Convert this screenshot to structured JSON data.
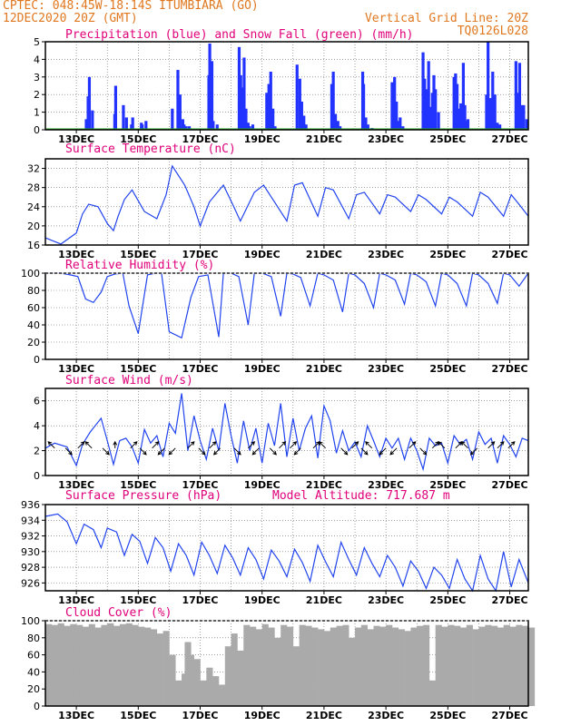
{
  "header": {
    "line1": "CPTEC:   048:45W-18:14S   ITUMBIARA (GO)",
    "line2": "12DEC2020 20Z (GMT)",
    "grid_line": "Vertical Grid Line: 20Z",
    "code": "TQ0126L028"
  },
  "colors": {
    "header": "#e07820",
    "title": "#e0007a",
    "precip": "#2233ff",
    "snow": "#22aa22",
    "line": "#2244ee",
    "cloud": "#aaaaaa",
    "arrow": "#000000"
  },
  "x_ticks": [
    "13DEC",
    "15DEC",
    "17DEC",
    "19DEC",
    "21DEC",
    "23DEC",
    "25DEC",
    "27DEC"
  ],
  "chart_data": [
    {
      "id": "precip",
      "type": "bar",
      "title": "Precipitation (blue) and Snow Fall (green) (mm/h)",
      "ylim": [
        0,
        5
      ],
      "yticks": [
        0,
        1,
        2,
        3,
        4,
        5
      ],
      "series": [
        {
          "name": "Precipitation",
          "x": [
            0.32,
            0.38,
            0.42,
            0.52,
            1.24,
            1.27,
            1.52,
            1.62,
            1.78,
            1.82,
            2.1,
            2.13,
            2.25,
            3.1,
            3.28,
            3.35,
            3.44,
            3.48,
            3.55,
            3.65,
            4.28,
            4.31,
            4.38,
            4.42,
            4.55,
            5.26,
            5.31,
            5.35,
            5.42,
            5.48,
            5.55,
            5.6,
            5.7,
            6.15,
            6.22,
            6.28,
            6.35,
            6.42,
            7.13,
            7.22,
            7.28,
            7.35,
            7.42,
            8.25,
            8.3,
            8.37,
            8.45,
            8.52,
            9.25,
            9.28,
            9.35,
            9.42,
            9.55,
            10.2,
            10.28,
            10.34,
            10.4,
            10.46,
            10.55,
            11.2,
            11.25,
            11.3,
            11.38,
            11.45,
            11.5,
            11.55,
            11.6,
            11.7,
            12.2,
            12.25,
            12.3,
            12.35,
            12.42,
            12.5,
            12.55,
            12.6,
            12.65,
            13.25,
            13.3,
            13.38,
            13.45,
            13.52,
            13.6,
            13.68,
            14.2,
            14.26,
            14.32,
            14.38,
            14.45,
            14.55
          ],
          "values": [
            0.6,
            1.9,
            3.0,
            1.1,
            0.9,
            2.5,
            1.4,
            0.7,
            0.3,
            0.7,
            0.4,
            0.3,
            0.5,
            1.2,
            3.4,
            2.0,
            0.6,
            0.3,
            0.2,
            0.2,
            3.1,
            4.9,
            3.9,
            0.5,
            0.3,
            4.7,
            3.1,
            2.4,
            4.1,
            1.2,
            0.4,
            0.2,
            0.3,
            2.1,
            2.6,
            3.3,
            1.2,
            0.2,
            3.7,
            2.9,
            1.6,
            0.8,
            0.3,
            2.6,
            3.3,
            0.9,
            0.5,
            0.2,
            3.3,
            2.6,
            0.7,
            0.3,
            0.1,
            2.7,
            3.0,
            1.6,
            0.5,
            0.7,
            0.2,
            4.4,
            2.9,
            2.3,
            3.9,
            1.3,
            2.1,
            3.1,
            2.3,
            1.0,
            3.0,
            3.2,
            2.6,
            1.2,
            1.5,
            3.8,
            1.4,
            0.5,
            0.6,
            2.0,
            5.0,
            1.8,
            3.3,
            2.0,
            0.4,
            0.3,
            3.9,
            2.1,
            3.8,
            1.4,
            1.4,
            0.6
          ]
        },
        {
          "name": "Snow Fall",
          "x": [
            0,
            14.6
          ],
          "values": [
            0,
            0
          ]
        }
      ]
    },
    {
      "id": "temp",
      "type": "line",
      "title": "Surface Temperature (nC)",
      "ylim": [
        16,
        34
      ],
      "yticks": [
        16,
        20,
        24,
        28,
        32
      ],
      "series": [
        {
          "name": "Temperature",
          "x": [
            -1,
            -0.5,
            0,
            0.2,
            0.4,
            0.7,
            1.0,
            1.2,
            1.35,
            1.55,
            1.8,
            2.2,
            2.6,
            2.9,
            3.1,
            3.5,
            3.8,
            4.0,
            4.3,
            4.75,
            5.05,
            5.3,
            5.75,
            6.05,
            6.3,
            6.8,
            7.05,
            7.3,
            7.8,
            8.05,
            8.3,
            8.8,
            9.05,
            9.3,
            9.8,
            10.05,
            10.3,
            10.8,
            11.05,
            11.3,
            11.8,
            12.05,
            12.3,
            12.8,
            13.05,
            13.3,
            13.8,
            14.05,
            14.3,
            14.6
          ],
          "values": [
            17.5,
            16.2,
            18.5,
            22.5,
            24.5,
            24.0,
            20.5,
            19.0,
            22.0,
            25.5,
            27.5,
            23.0,
            21.5,
            26.5,
            32.5,
            28.5,
            24.0,
            20.0,
            25.0,
            28.5,
            24.5,
            21.0,
            27.0,
            28.5,
            26.0,
            21.0,
            28.5,
            29.0,
            22.0,
            28.0,
            27.5,
            21.5,
            26.5,
            27.0,
            22.5,
            26.5,
            26.0,
            23.0,
            26.5,
            25.5,
            22.5,
            26.0,
            25.0,
            22.0,
            27.0,
            26.0,
            22.0,
            26.5,
            24.5,
            22.0
          ]
        }
      ]
    },
    {
      "id": "rh",
      "type": "line",
      "title": "Relative Humidity (%)",
      "ylim": [
        0,
        100
      ],
      "yticks": [
        0,
        20,
        40,
        60,
        80,
        100
      ],
      "series": [
        {
          "name": "Relative Humidity",
          "x": [
            -1,
            -0.5,
            -0.2,
            0.05,
            0.3,
            0.55,
            0.8,
            1.0,
            1.25,
            1.5,
            1.7,
            2.0,
            2.3,
            2.55,
            2.75,
            3.0,
            3.4,
            3.7,
            3.95,
            4.25,
            4.6,
            4.75,
            5.0,
            5.25,
            5.55,
            5.75,
            6.0,
            6.3,
            6.6,
            6.8,
            7.0,
            7.25,
            7.55,
            7.8,
            8.0,
            8.3,
            8.6,
            8.8,
            9.0,
            9.3,
            9.6,
            9.8,
            10.0,
            10.3,
            10.6,
            10.8,
            11.0,
            11.3,
            11.6,
            11.8,
            12.0,
            12.3,
            12.6,
            12.8,
            13.0,
            13.3,
            13.6,
            13.8,
            14.0,
            14.3,
            14.6
          ],
          "values": [
            100,
            100,
            98,
            96,
            70,
            66,
            78,
            96,
            99,
            100,
            62,
            30,
            98,
            100,
            100,
            32,
            25,
            72,
            96,
            98,
            26,
            100,
            100,
            96,
            40,
            100,
            100,
            96,
            50,
            100,
            99,
            95,
            62,
            100,
            98,
            92,
            55,
            100,
            98,
            88,
            60,
            100,
            98,
            92,
            64,
            100,
            98,
            90,
            62,
            100,
            98,
            88,
            62,
            100,
            98,
            88,
            65,
            100,
            98,
            85,
            100
          ]
        }
      ]
    },
    {
      "id": "wind",
      "type": "line",
      "title": "Surface Wind (m/s)",
      "ylim": [
        0,
        7
      ],
      "yticks": [
        0,
        2,
        4,
        6
      ],
      "series": [
        {
          "name": "Wind Speed",
          "x": [
            -1,
            -0.7,
            -0.3,
            0,
            0.2,
            0.45,
            0.8,
            1.0,
            1.2,
            1.4,
            1.6,
            1.8,
            2.0,
            2.2,
            2.4,
            2.6,
            2.8,
            3.0,
            3.2,
            3.4,
            3.6,
            3.8,
            4.0,
            4.2,
            4.4,
            4.6,
            4.8,
            5.0,
            5.2,
            5.4,
            5.6,
            5.8,
            6.0,
            6.2,
            6.4,
            6.6,
            6.8,
            7.0,
            7.2,
            7.4,
            7.6,
            7.8,
            8.0,
            8.2,
            8.4,
            8.6,
            8.8,
            9.0,
            9.2,
            9.4,
            9.6,
            9.8,
            10.0,
            10.2,
            10.4,
            10.6,
            10.8,
            11.0,
            11.2,
            11.4,
            11.6,
            11.8,
            12.0,
            12.2,
            12.4,
            12.6,
            12.8,
            13.0,
            13.2,
            13.4,
            13.6,
            13.8,
            14.0,
            14.2,
            14.4,
            14.6
          ],
          "values": [
            2.2,
            2.6,
            2.3,
            0.8,
            2.5,
            3.5,
            4.6,
            2.8,
            0.9,
            2.8,
            3.0,
            2.3,
            1.0,
            3.7,
            2.6,
            3.2,
            1.5,
            4.2,
            3.4,
            6.6,
            2.0,
            4.8,
            2.8,
            1.3,
            3.8,
            2.0,
            5.8,
            3.2,
            1.0,
            4.4,
            2.0,
            3.8,
            1.0,
            4.2,
            2.4,
            5.8,
            1.5,
            4.6,
            2.0,
            3.8,
            4.8,
            1.4,
            5.6,
            4.4,
            1.8,
            3.6,
            2.0,
            2.7,
            1.5,
            4.0,
            2.8,
            1.5,
            3.0,
            2.2,
            3.0,
            1.3,
            3.0,
            2.0,
            0.5,
            3.0,
            2.4,
            2.6,
            1.0,
            3.2,
            2.5,
            2.9,
            1.3,
            3.5,
            2.5,
            3.0,
            1.0,
            3.2,
            2.5,
            1.5,
            3.0,
            2.8
          ]
        }
      ],
      "arrows": {
        "x": [
          -0.7,
          -0.35,
          0.05,
          0.5,
          0.85,
          1.25,
          1.75,
          2.05,
          2.45,
          2.85,
          3.2,
          3.6,
          3.95,
          4.3,
          4.65,
          5.1,
          5.55,
          5.9,
          6.25,
          6.55,
          6.9,
          7.25,
          7.65,
          8.05,
          8.55,
          8.9,
          9.2,
          9.55,
          10.0,
          10.35,
          10.75,
          11.1,
          11.5,
          11.9,
          12.25,
          12.65,
          12.95,
          13.3,
          13.6,
          13.95
        ],
        "u": [
          -1,
          1,
          1,
          -1,
          1,
          0,
          1,
          1,
          1,
          -1,
          -1,
          1,
          1,
          1,
          -1,
          1,
          1,
          -1,
          1,
          1,
          1,
          -1,
          1,
          -1,
          1,
          1,
          1,
          -1,
          -1,
          -1,
          1,
          1,
          1,
          -1,
          1,
          -1,
          -1,
          1,
          1,
          1
        ],
        "v": [
          1,
          -1,
          1,
          1,
          -1,
          1,
          1,
          -1,
          1,
          -1,
          -1,
          1,
          -1,
          1,
          -1,
          -1,
          1,
          -1,
          -1,
          1,
          1,
          -1,
          1,
          1,
          -1,
          1,
          -1,
          1,
          -1,
          -1,
          1,
          -1,
          1,
          1,
          1,
          1,
          -1,
          1,
          1,
          1
        ]
      }
    },
    {
      "id": "pressure",
      "type": "line",
      "title": "Surface Pressure (hPa)",
      "annotation": "Model Altitude: 717.687  m",
      "ylim": [
        925,
        936
      ],
      "yticks": [
        926,
        928,
        930,
        932,
        934,
        936
      ],
      "series": [
        {
          "name": "Pressure",
          "x": [
            -1,
            -0.6,
            -0.3,
            0,
            0.25,
            0.55,
            0.8,
            1.0,
            1.3,
            1.55,
            1.8,
            2.05,
            2.3,
            2.55,
            2.8,
            3.05,
            3.3,
            3.55,
            3.8,
            4.05,
            4.3,
            4.55,
            4.8,
            5.05,
            5.3,
            5.55,
            5.8,
            6.05,
            6.3,
            6.55,
            6.8,
            7.05,
            7.3,
            7.55,
            7.8,
            8.05,
            8.3,
            8.55,
            8.8,
            9.05,
            9.3,
            9.55,
            9.8,
            10.05,
            10.3,
            10.55,
            10.8,
            11.05,
            11.3,
            11.55,
            11.8,
            12.05,
            12.3,
            12.55,
            12.8,
            13.05,
            13.3,
            13.55,
            13.8,
            14.05,
            14.3,
            14.6
          ],
          "values": [
            934.5,
            934.8,
            933.8,
            931.0,
            933.5,
            932.8,
            930.5,
            933.0,
            932.5,
            929.5,
            932.2,
            931.3,
            928.5,
            931.8,
            930.5,
            927.5,
            931.0,
            929.5,
            927.0,
            931.2,
            929.5,
            927.2,
            930.8,
            929.2,
            927.0,
            930.5,
            929.0,
            926.5,
            930.2,
            928.8,
            926.8,
            930.3,
            928.6,
            926.2,
            930.8,
            928.7,
            926.8,
            931.2,
            929.0,
            927.0,
            930.5,
            928.5,
            926.8,
            929.5,
            928.0,
            925.6,
            928.8,
            927.5,
            925.3,
            928.0,
            927.0,
            925.3,
            929.0,
            926.5,
            925.0,
            929.5,
            926.5,
            925.0,
            930.0,
            925.5,
            929.0,
            926.0
          ]
        }
      ]
    },
    {
      "id": "cloud",
      "type": "area",
      "title": "Cloud Cover (%)",
      "ylim": [
        0,
        100
      ],
      "yticks": [
        0,
        20,
        40,
        60,
        80,
        100
      ],
      "series": [
        {
          "name": "Cloud Cover",
          "x": [
            -1,
            -0.8,
            -0.6,
            -0.4,
            -0.2,
            0,
            0.2,
            0.4,
            0.6,
            0.8,
            1.0,
            1.2,
            1.4,
            1.6,
            1.8,
            2.0,
            2.2,
            2.4,
            2.6,
            2.8,
            3.0,
            3.1,
            3.2,
            3.3,
            3.4,
            3.5,
            3.6,
            3.8,
            4.0,
            4.2,
            4.4,
            4.6,
            4.8,
            5.0,
            5.2,
            5.4,
            5.6,
            5.8,
            6.0,
            6.2,
            6.4,
            6.6,
            6.8,
            7.0,
            7.2,
            7.4,
            7.6,
            7.8,
            8.0,
            8.2,
            8.4,
            8.6,
            8.8,
            9.0,
            9.2,
            9.4,
            9.6,
            9.8,
            10.0,
            10.2,
            10.4,
            10.6,
            10.8,
            11.0,
            11.2,
            11.4,
            11.6,
            11.8,
            12.0,
            12.2,
            12.4,
            12.6,
            12.8,
            13.0,
            13.2,
            13.4,
            13.6,
            13.8,
            14.0,
            14.2,
            14.4,
            14.6
          ],
          "values": [
            96,
            95,
            97,
            94,
            96,
            95,
            93,
            96,
            92,
            95,
            97,
            94,
            96,
            97,
            95,
            93,
            92,
            90,
            85,
            88,
            60,
            20,
            30,
            1,
            38,
            75,
            60,
            55,
            30,
            45,
            35,
            25,
            70,
            85,
            65,
            95,
            93,
            90,
            96,
            92,
            80,
            95,
            93,
            70,
            95,
            94,
            92,
            90,
            88,
            92,
            94,
            95,
            80,
            92,
            95,
            90,
            94,
            93,
            95,
            92,
            90,
            88,
            92,
            94,
            95,
            30,
            95,
            93,
            95,
            94,
            92,
            95,
            90,
            93,
            95,
            94,
            92,
            95,
            93,
            95,
            94,
            92
          ]
        }
      ]
    }
  ]
}
